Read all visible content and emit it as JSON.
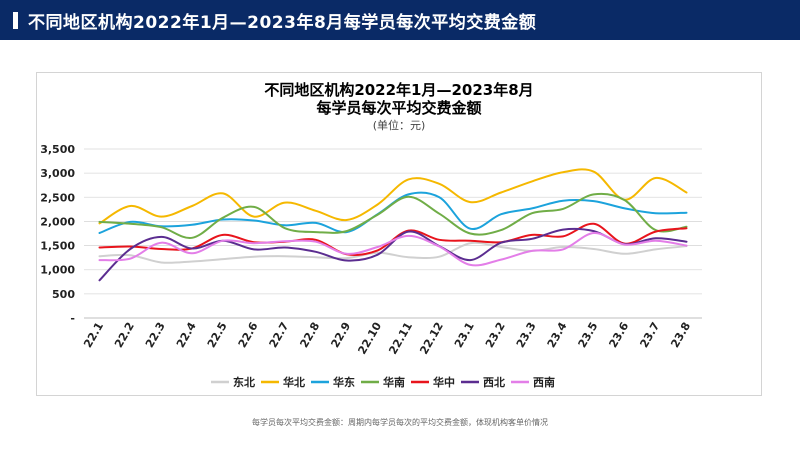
{
  "header": {
    "title": "不同地区机构2022年1月—2023年8月每学员每次平均交费金额"
  },
  "chart_data": {
    "type": "line",
    "title_line1": "不同地区机构2022年1月—2023年8月",
    "title_line2": "每学员每次平均交费金额",
    "unit": "(单位：元)",
    "ylim": [
      0,
      3500
    ],
    "yticks": [
      0,
      500,
      1000,
      1500,
      2000,
      2500,
      3000,
      3500
    ],
    "ytick_labels": [
      "-",
      "500",
      "1,000",
      "1,500",
      "2,000",
      "2,500",
      "3,000",
      "3,500"
    ],
    "grid": true,
    "legend_position": "bottom",
    "categories": [
      "22.1",
      "22.2",
      "22.3",
      "22.4",
      "22.5",
      "22.6",
      "22.7",
      "22.8",
      "22.9",
      "22.10",
      "22.11",
      "22.12",
      "23.1",
      "23.2",
      "23.3",
      "23.4",
      "23.5",
      "23.6",
      "23.7",
      "23.8"
    ],
    "series": [
      {
        "name": "东北",
        "color": "#d0d0d0",
        "values": [
          1280,
          1300,
          1150,
          1170,
          1220,
          1270,
          1280,
          1260,
          1240,
          1350,
          1260,
          1270,
          1550,
          1470,
          1390,
          1470,
          1430,
          1330,
          1420,
          1490
        ]
      },
      {
        "name": "华北",
        "color": "#f5b800",
        "values": [
          1960,
          2320,
          2100,
          2320,
          2580,
          2100,
          2390,
          2220,
          2030,
          2350,
          2870,
          2780,
          2400,
          2600,
          2830,
          3020,
          3030,
          2450,
          2900,
          2600
        ]
      },
      {
        "name": "华东",
        "color": "#1ca3dc",
        "values": [
          1760,
          1990,
          1900,
          1930,
          2040,
          2020,
          1920,
          1970,
          1780,
          2150,
          2560,
          2500,
          1850,
          2150,
          2270,
          2430,
          2420,
          2270,
          2170,
          2180
        ]
      },
      {
        "name": "华南",
        "color": "#70ad47",
        "values": [
          1990,
          1950,
          1880,
          1660,
          2080,
          2300,
          1860,
          1780,
          1800,
          2140,
          2510,
          2160,
          1750,
          1820,
          2170,
          2260,
          2560,
          2440,
          1820,
          1890
        ]
      },
      {
        "name": "华中",
        "color": "#e8141c",
        "values": [
          1460,
          1480,
          1430,
          1440,
          1720,
          1570,
          1580,
          1620,
          1320,
          1400,
          1810,
          1620,
          1600,
          1570,
          1720,
          1690,
          1950,
          1540,
          1790,
          1860
        ]
      },
      {
        "name": "西北",
        "color": "#5b2d90",
        "values": [
          780,
          1430,
          1680,
          1440,
          1600,
          1420,
          1460,
          1370,
          1190,
          1310,
          1790,
          1490,
          1200,
          1560,
          1640,
          1830,
          1800,
          1530,
          1650,
          1580
        ]
      },
      {
        "name": "西南",
        "color": "#e37ee8",
        "values": [
          1200,
          1230,
          1560,
          1340,
          1600,
          1550,
          1590,
          1580,
          1330,
          1470,
          1700,
          1480,
          1100,
          1210,
          1390,
          1420,
          1760,
          1520,
          1600,
          1500
        ]
      }
    ]
  },
  "footnote": "每学员每次平均交费金额：周期内每学员每次的平均交费金额，体现机构客单价情况"
}
